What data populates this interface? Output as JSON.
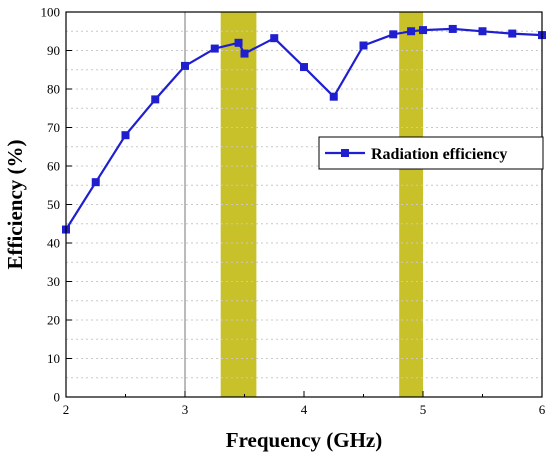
{
  "chart_data": {
    "type": "line",
    "xlabel": "Frequency (GHz)",
    "ylabel": "Efficiency (%)",
    "xlim": [
      2,
      6
    ],
    "ylim": [
      0,
      100
    ],
    "x_ticks": [
      "2",
      "3",
      "4",
      "5",
      "6"
    ],
    "y_ticks": [
      "0",
      "10",
      "20",
      "30",
      "40",
      "50",
      "60",
      "70",
      "80",
      "90",
      "100"
    ],
    "grid": "dotted horizontal",
    "legend": {
      "position": "right",
      "entries": [
        "Radiation efficiency"
      ]
    },
    "highlight_bands": [
      {
        "from": 3.3,
        "to": 3.6,
        "color": "#c9c12a"
      },
      {
        "from": 4.8,
        "to": 5.0,
        "color": "#c9c12a"
      }
    ],
    "series": [
      {
        "name": "Radiation efficiency",
        "color": "#1f1fd0",
        "marker": "square",
        "x": [
          2.0,
          2.25,
          2.5,
          2.75,
          3.0,
          3.25,
          3.45,
          3.5,
          3.75,
          4.0,
          4.25,
          4.5,
          4.75,
          4.9,
          5.0,
          5.25,
          5.5,
          5.75,
          6.0
        ],
        "y": [
          43.5,
          55.8,
          68.0,
          77.3,
          86.0,
          90.5,
          92.0,
          89.2,
          93.2,
          85.7,
          78.0,
          91.3,
          94.2,
          95.0,
          95.3,
          95.6,
          95.0,
          94.4,
          94.0
        ]
      }
    ]
  }
}
